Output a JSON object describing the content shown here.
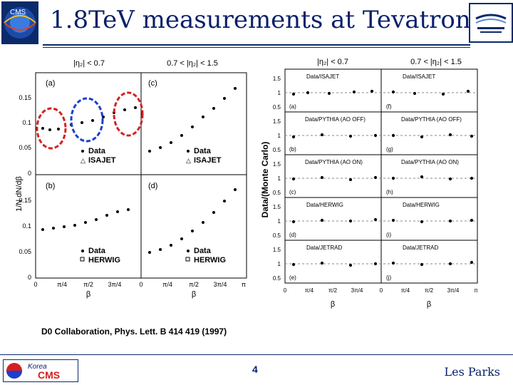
{
  "header": {
    "title": "1.8TeV measurements at Tevatron",
    "logo_left_text": "CMS"
  },
  "left_figure": {
    "ylabel": "1/N dN/dβ",
    "col_labels": [
      "|η₂| < 0.7",
      "0.7 < |η₂| < 1.5"
    ],
    "panels": [
      "(a)",
      "(c)",
      "(b)",
      "(d)"
    ],
    "legend_top": [
      "Data",
      "ISAJET"
    ],
    "legend_bottom": [
      "Data",
      "HERWIG"
    ],
    "yticks_top": [
      "0.15",
      "0.1",
      "0.05",
      "0"
    ],
    "yticks_bottom": [
      "0.15",
      "0.1",
      "0.05",
      "0"
    ],
    "xticks": [
      "0",
      "π/4",
      "π/2",
      "3π/4",
      "π"
    ],
    "xlabel": "β"
  },
  "right_figure": {
    "ylabel": "Data/(Monte Carlo)",
    "col_labels": [
      "|η₂| < 0.7",
      "0.7 < |η₂| < 1.5"
    ],
    "rows": [
      {
        "label": "Data/ISAJET",
        "left": "(a)",
        "right": "(f)"
      },
      {
        "label": "Data/PYTHIA (AO OFF)",
        "left": "(b)",
        "right": "(g)"
      },
      {
        "label": "Data/PYTHIA (AO ON)",
        "left": "(c)",
        "right": "(h)"
      },
      {
        "label": "Data/HERWIG",
        "left": "(d)",
        "right": "(i)"
      },
      {
        "label": "Data/JETRAD",
        "left": "(e)",
        "right": "(j)"
      }
    ],
    "yticks": [
      "1.5",
      "1",
      "0.5"
    ],
    "xticks": [
      "0",
      "π/4",
      "π/2",
      "3π/4",
      "π"
    ],
    "xlabel": "β"
  },
  "citation": "D0 Collaboration, Phys. Lett. B 414 419 (1997)",
  "footer": {
    "page_number": "4",
    "author": "Les Parks",
    "logo_korea": "Korea",
    "logo_cms": "CMS"
  },
  "colors": {
    "navy": "#0a1f6a",
    "red_circle": "#d42020",
    "blue_circle": "#1a3fd0"
  }
}
